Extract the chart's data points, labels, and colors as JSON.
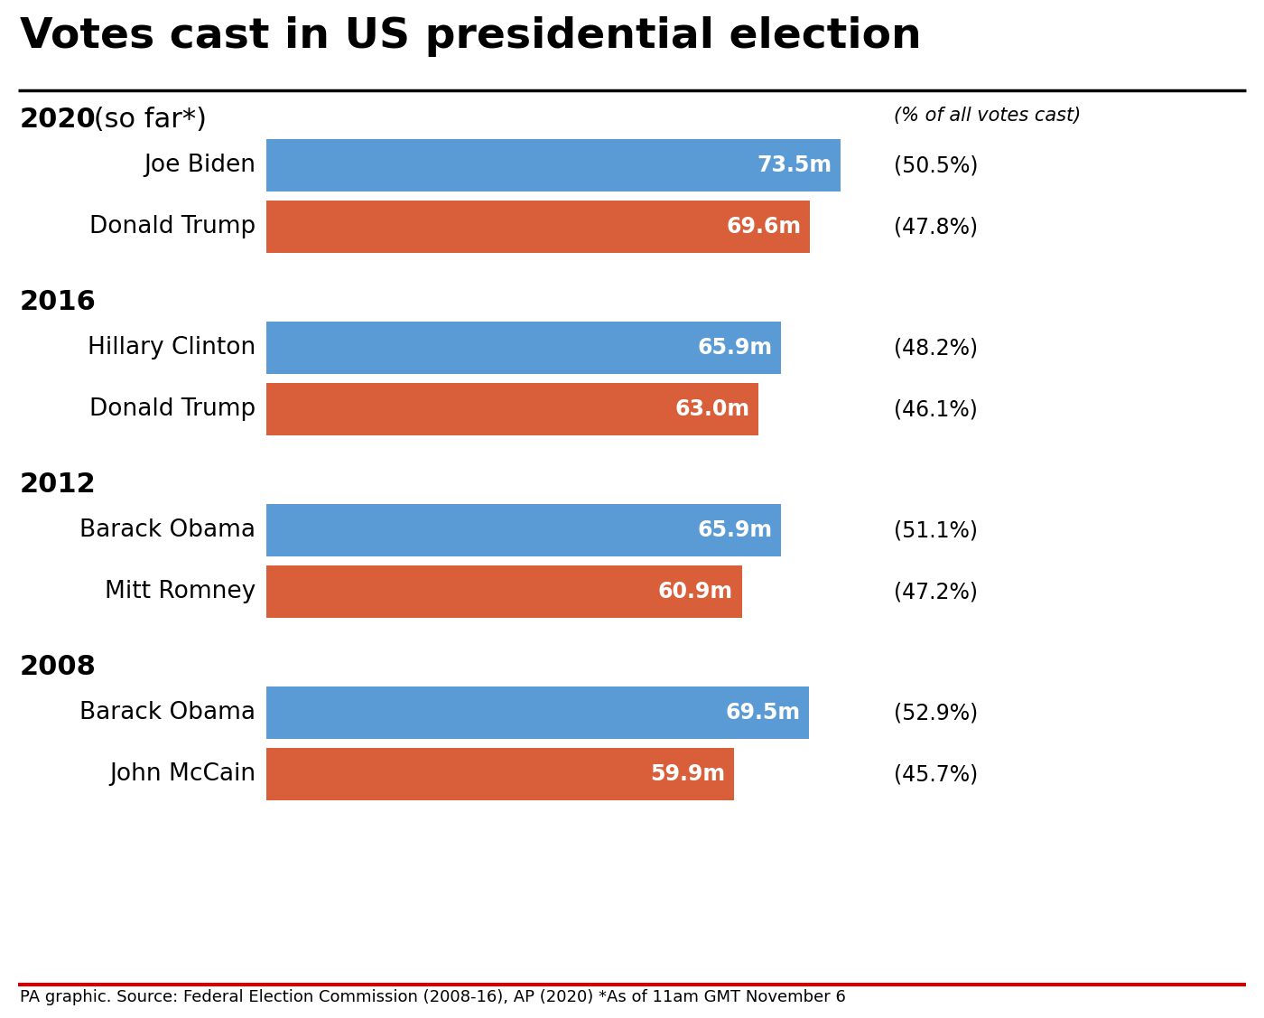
{
  "title": "Votes cast in US presidential election",
  "title_fontsize": 34,
  "background_color": "#ffffff",
  "blue_color": "#5b9bd5",
  "red_color": "#d95f3b",
  "sections": [
    {
      "year_bold": "2020",
      "year_normal": " (so far*)",
      "candidates": [
        {
          "name": "Joe Biden",
          "votes": 73.5,
          "label": "73.5m",
          "pct": "(50.5%)",
          "color": "blue"
        },
        {
          "name": "Donald Trump",
          "votes": 69.6,
          "label": "69.6m",
          "pct": "(47.8%)",
          "color": "red"
        }
      ]
    },
    {
      "year_bold": "2016",
      "year_normal": "",
      "candidates": [
        {
          "name": "Hillary Clinton",
          "votes": 65.9,
          "label": "65.9m",
          "pct": "(48.2%)",
          "color": "blue"
        },
        {
          "name": "Donald Trump",
          "votes": 63.0,
          "label": "63.0m",
          "pct": "(46.1%)",
          "color": "red"
        }
      ]
    },
    {
      "year_bold": "2012",
      "year_normal": "",
      "candidates": [
        {
          "name": "Barack Obama",
          "votes": 65.9,
          "label": "65.9m",
          "pct": "(51.1%)",
          "color": "blue"
        },
        {
          "name": "Mitt Romney",
          "votes": 60.9,
          "label": "60.9m",
          "pct": "(47.2%)",
          "color": "red"
        }
      ]
    },
    {
      "year_bold": "2008",
      "year_normal": "",
      "candidates": [
        {
          "name": "Barack Obama",
          "votes": 69.5,
          "label": "69.5m",
          "pct": "(52.9%)",
          "color": "blue"
        },
        {
          "name": "John McCain",
          "votes": 59.9,
          "label": "59.9m",
          "pct": "(45.7%)",
          "color": "red"
        }
      ]
    }
  ],
  "max_votes": 78,
  "pct_header": "(% of all votes cast)",
  "footer": "PA graphic. Source: Federal Election Commission (2008-16), AP (2020) *As of 11am GMT November 6",
  "footer_fontsize": 13,
  "title_line_color": "#000000",
  "bottom_line_color": "#cc0000"
}
